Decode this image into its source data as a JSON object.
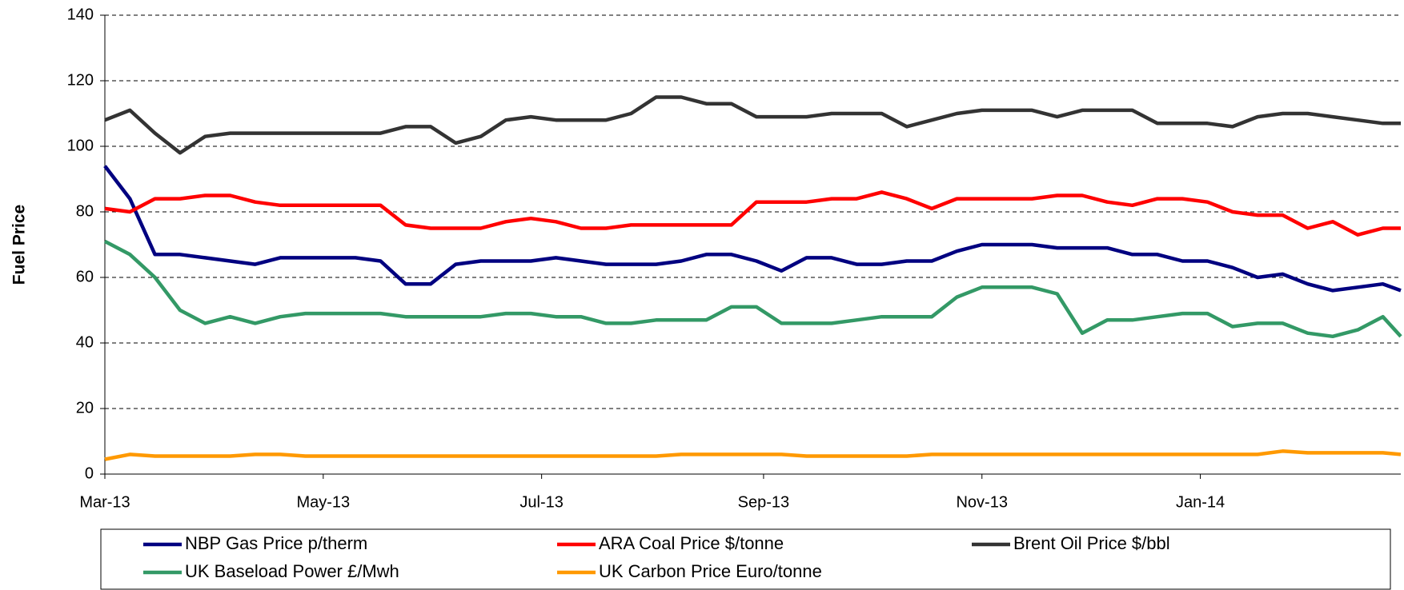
{
  "chart_data": {
    "type": "line",
    "ylabel": "Fuel Price",
    "x": [
      0,
      7,
      14,
      21,
      28,
      35,
      42,
      49,
      56,
      63,
      70,
      77,
      84,
      91,
      98,
      105,
      112,
      119,
      126,
      133,
      140,
      147,
      154,
      161,
      168,
      175,
      182,
      189,
      196,
      203,
      210,
      217,
      224,
      231,
      238,
      245,
      252,
      259,
      266,
      273,
      280,
      287,
      294,
      301,
      308,
      315,
      322,
      329,
      336,
      343,
      350,
      357,
      362
    ],
    "xlim": [
      0,
      362
    ],
    "xticks": [
      {
        "value": 0,
        "label": "Mar-13"
      },
      {
        "value": 61,
        "label": "May-13"
      },
      {
        "value": 122,
        "label": "Jul-13"
      },
      {
        "value": 184,
        "label": "Sep-13"
      },
      {
        "value": 245,
        "label": "Nov-13"
      },
      {
        "value": 306,
        "label": "Jan-14"
      }
    ],
    "ylim": [
      0,
      140
    ],
    "yticks": [
      0,
      20,
      40,
      60,
      80,
      100,
      120,
      140
    ],
    "grid": true,
    "legend": "bottom",
    "series": [
      {
        "name": "NBP Gas Price p/therm",
        "color": "#000080",
        "values": [
          94,
          84,
          67,
          67,
          66,
          65,
          64,
          66,
          66,
          66,
          66,
          65,
          58,
          58,
          64,
          65,
          65,
          65,
          66,
          65,
          64,
          64,
          64,
          65,
          67,
          67,
          65,
          62,
          66,
          66,
          64,
          64,
          65,
          65,
          68,
          70,
          70,
          70,
          69,
          69,
          69,
          67,
          67,
          65,
          65,
          63,
          60,
          61,
          58,
          56,
          57,
          58,
          56
        ]
      },
      {
        "name": "ARA Coal Price $/tonne",
        "color": "#ff0000",
        "values": [
          81,
          80,
          84,
          84,
          85,
          85,
          83,
          82,
          82,
          82,
          82,
          82,
          76,
          75,
          75,
          75,
          77,
          78,
          77,
          75,
          75,
          76,
          76,
          76,
          76,
          76,
          83,
          83,
          83,
          84,
          84,
          86,
          84,
          81,
          84,
          84,
          84,
          84,
          85,
          85,
          83,
          82,
          84,
          84,
          83,
          80,
          79,
          79,
          75,
          77,
          73,
          75,
          75
        ]
      },
      {
        "name": "Brent Oil Price $/bbl",
        "color": "#333333",
        "values": [
          108,
          111,
          104,
          98,
          103,
          104,
          104,
          104,
          104,
          104,
          104,
          104,
          106,
          106,
          101,
          103,
          108,
          109,
          108,
          108,
          108,
          110,
          115,
          115,
          113,
          113,
          109,
          109,
          109,
          110,
          110,
          110,
          106,
          108,
          110,
          111,
          111,
          111,
          109,
          111,
          111,
          111,
          107,
          107,
          107,
          106,
          109,
          110,
          110,
          109,
          108,
          107,
          107
        ]
      },
      {
        "name": "UK Baseload Power £/Mwh",
        "color": "#339966",
        "values": [
          71,
          67,
          60,
          50,
          46,
          48,
          46,
          48,
          49,
          49,
          49,
          49,
          48,
          48,
          48,
          48,
          49,
          49,
          48,
          48,
          46,
          46,
          47,
          47,
          47,
          51,
          51,
          46,
          46,
          46,
          47,
          48,
          48,
          48,
          54,
          57,
          57,
          57,
          55,
          43,
          47,
          47,
          48,
          49,
          49,
          45,
          46,
          46,
          43,
          42,
          44,
          48,
          42
        ]
      },
      {
        "name": "UK Carbon Price Euro/tonne",
        "color": "#ff9900",
        "values": [
          4.5,
          6,
          5.5,
          5.5,
          5.5,
          5.5,
          6,
          6,
          5.5,
          5.5,
          5.5,
          5.5,
          5.5,
          5.5,
          5.5,
          5.5,
          5.5,
          5.5,
          5.5,
          5.5,
          5.5,
          5.5,
          5.5,
          6,
          6,
          6,
          6,
          6,
          5.5,
          5.5,
          5.5,
          5.5,
          5.5,
          6,
          6,
          6,
          6,
          6,
          6,
          6,
          6,
          6,
          6,
          6,
          6,
          6,
          6,
          7,
          6.5,
          6.5,
          6.5,
          6.5,
          6
        ]
      }
    ]
  }
}
